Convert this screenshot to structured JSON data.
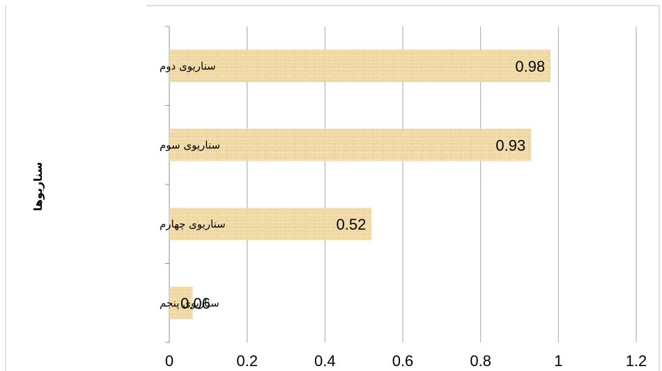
{
  "chart_data": {
    "type": "bar",
    "orientation": "horizontal",
    "categories": [
      "سناریوی دوم",
      "سناریوی سوم",
      "سناریوی چهارم",
      "سناریوی پنجم"
    ],
    "values": [
      0.98,
      0.93,
      0.52,
      0.06
    ],
    "data_labels": [
      "0.98",
      "0.93",
      "0.52",
      "0.06"
    ],
    "x_ticks": [
      "0",
      "0.2",
      "0.4",
      "0.6",
      "0.8",
      "1",
      "1.2"
    ],
    "xlim": [
      0,
      1.2
    ],
    "ylabel": "سناریوها",
    "xlabel": "",
    "title": "",
    "grid": "vertical",
    "legend": "none",
    "colors": {
      "bar_fill": "#f3deae",
      "bar_texture": "#e6c98c",
      "grid": "#a6a6a6"
    }
  }
}
